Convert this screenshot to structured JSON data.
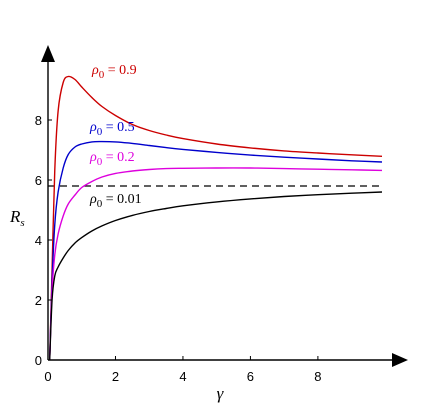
{
  "chart_data": {
    "type": "line",
    "xlabel": "γ",
    "ylabel": {
      "main": "R",
      "sub": "s"
    },
    "xlim": [
      0,
      9.9
    ],
    "ylim": [
      0,
      9.8
    ],
    "xticks": [
      "0",
      "2",
      "4",
      "6",
      "8"
    ],
    "yticks": [
      "0",
      "2",
      "4",
      "6",
      "8"
    ],
    "grid": false,
    "reference_line": {
      "y": 5.8,
      "style": "dashed",
      "color": "#000000"
    },
    "series": [
      {
        "name": "ρ0 = 0.9",
        "label_main": "ρ",
        "label_sub": "0",
        "label_value": " = 0.9",
        "color": "#cc0000",
        "x": [
          0.05,
          0.12,
          0.2,
          0.3,
          0.45,
          0.6,
          0.8,
          1.0,
          1.3,
          1.6,
          2.0,
          2.5,
          3.0,
          3.5,
          4.0,
          5.0,
          6.0,
          7.0,
          8.0,
          9.0,
          9.9
        ],
        "y": [
          0.0,
          3.0,
          6.3,
          8.3,
          9.25,
          9.45,
          9.35,
          9.1,
          8.75,
          8.45,
          8.15,
          7.85,
          7.65,
          7.5,
          7.38,
          7.2,
          7.07,
          6.97,
          6.9,
          6.84,
          6.79
        ]
      },
      {
        "name": "ρ0 = 0.5",
        "label_main": "ρ",
        "label_sub": "0",
        "label_value": " = 0.5",
        "color": "#0000cc",
        "x": [
          0.05,
          0.12,
          0.2,
          0.3,
          0.45,
          0.6,
          0.8,
          1.0,
          1.3,
          1.6,
          2.0,
          2.5,
          3.0,
          3.5,
          4.0,
          5.0,
          6.0,
          7.0,
          8.0,
          9.0,
          9.9
        ],
        "y": [
          0.0,
          2.6,
          4.5,
          5.6,
          6.4,
          6.85,
          7.1,
          7.2,
          7.27,
          7.28,
          7.27,
          7.22,
          7.15,
          7.08,
          7.02,
          6.92,
          6.83,
          6.76,
          6.7,
          6.64,
          6.6
        ]
      },
      {
        "name": "ρ0 = 0.2",
        "label_main": "ρ",
        "label_sub": "0",
        "label_value": " = 0.2",
        "color": "#dd00dd",
        "x": [
          0.05,
          0.12,
          0.2,
          0.3,
          0.45,
          0.6,
          0.8,
          1.0,
          1.3,
          1.6,
          2.0,
          2.5,
          3.0,
          3.5,
          4.0,
          5.0,
          6.0,
          7.0,
          8.0,
          9.0,
          9.9
        ],
        "y": [
          0.0,
          2.3,
          3.5,
          4.2,
          4.8,
          5.2,
          5.5,
          5.75,
          5.95,
          6.1,
          6.22,
          6.3,
          6.35,
          6.38,
          6.39,
          6.4,
          6.4,
          6.38,
          6.36,
          6.34,
          6.32
        ]
      },
      {
        "name": "ρ0 = 0.01",
        "label_main": "ρ",
        "label_sub": "0",
        "label_value": " = 0.01",
        "color": "#000000",
        "x": [
          0.05,
          0.12,
          0.2,
          0.3,
          0.45,
          0.6,
          0.8,
          1.0,
          1.3,
          1.6,
          2.0,
          2.5,
          3.0,
          3.5,
          4.0,
          5.0,
          6.0,
          7.0,
          8.0,
          9.0,
          9.9
        ],
        "y": [
          0.0,
          2.0,
          2.8,
          3.1,
          3.4,
          3.65,
          3.9,
          4.08,
          4.3,
          4.47,
          4.65,
          4.82,
          4.95,
          5.05,
          5.14,
          5.27,
          5.37,
          5.45,
          5.51,
          5.56,
          5.6
        ]
      }
    ]
  }
}
